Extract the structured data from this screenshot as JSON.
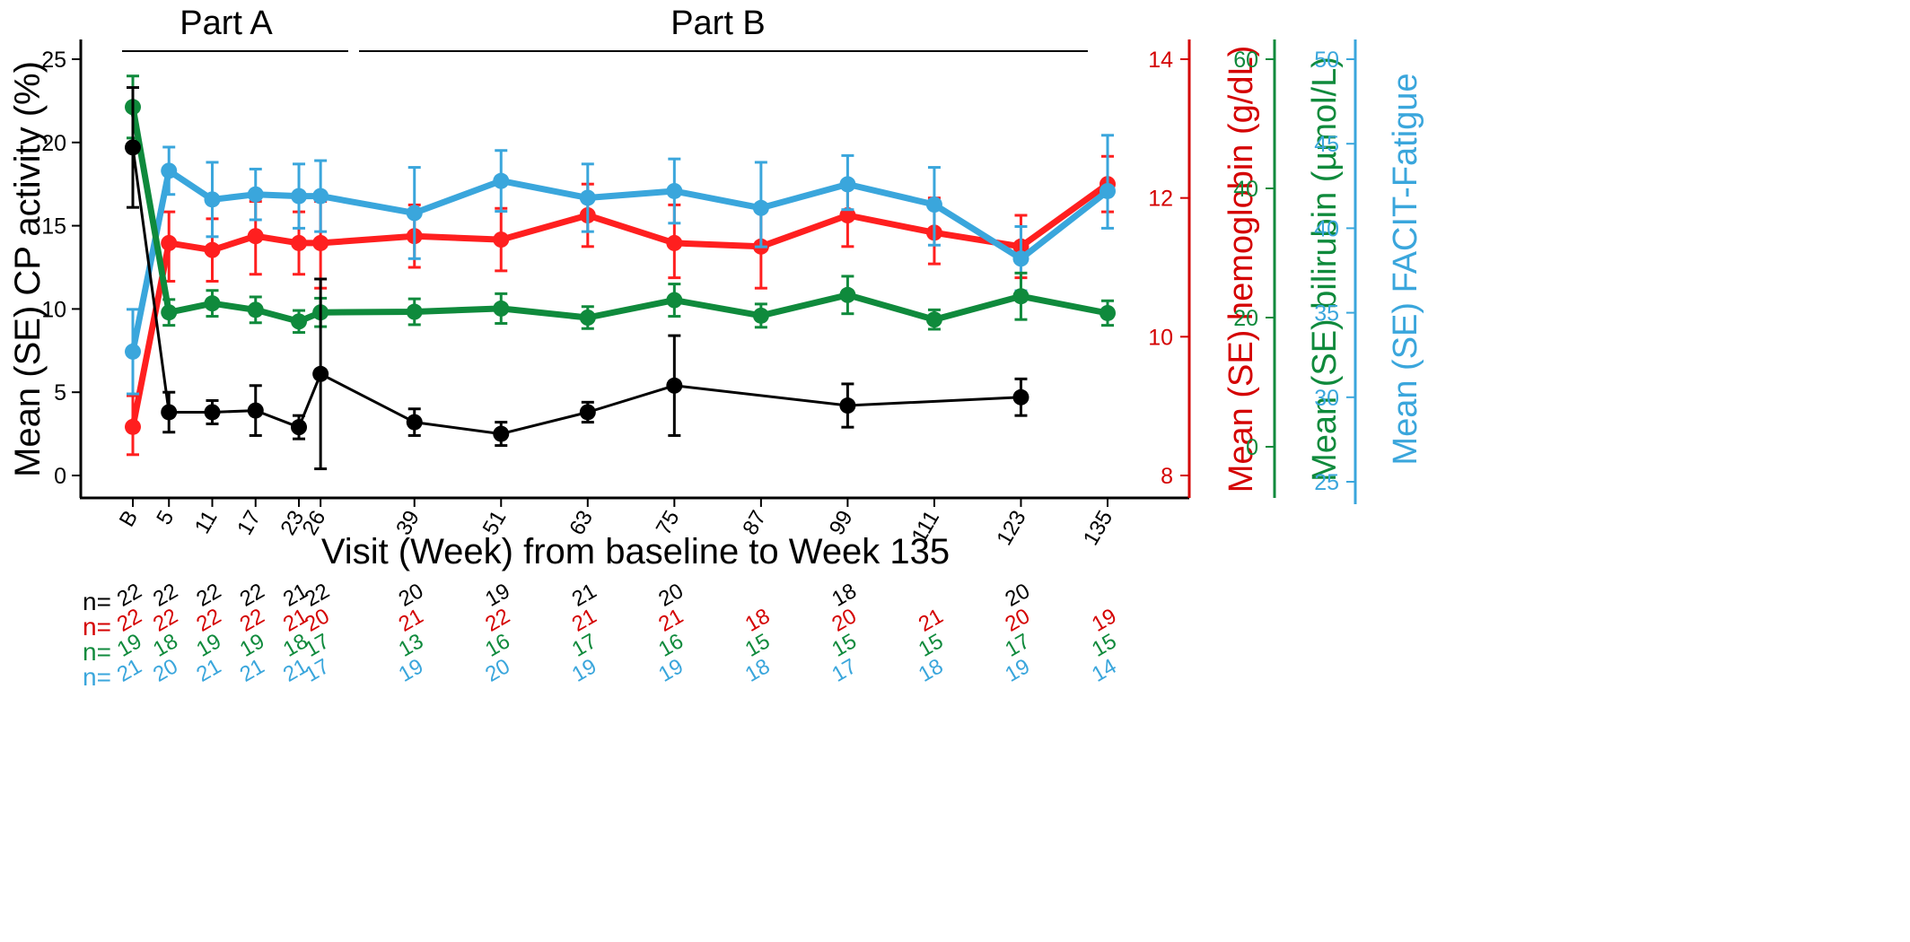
{
  "chart_data": {
    "type": "line",
    "title": "",
    "xlabel": "Visit (Week) from baseline to Week 135",
    "x_categories": [
      "B",
      "5",
      "11",
      "17",
      "23",
      "26",
      "39",
      "51",
      "63",
      "75",
      "87",
      "99",
      "111",
      "123",
      "135"
    ],
    "x_positions_weeks": [
      0,
      5,
      11,
      17,
      23,
      26,
      39,
      51,
      63,
      75,
      87,
      99,
      111,
      123,
      135
    ],
    "phases": [
      {
        "label": "Part A",
        "from_week": 0,
        "to_week": 26
      },
      {
        "label": "Part B",
        "from_week": 27,
        "to_week": 135
      }
    ],
    "axes": [
      {
        "id": "cp",
        "label": "Mean (SE) CP activity (%)",
        "range": [
          0,
          25
        ],
        "ticks": [
          0,
          5,
          10,
          15,
          20,
          25
        ],
        "color": "#000000",
        "side": "left"
      },
      {
        "id": "hgb",
        "label": "Mean (SE) hemoglobin (g/dL)",
        "range": [
          8,
          14
        ],
        "ticks": [
          8,
          10,
          12,
          14
        ],
        "color": "#d40000",
        "side": "right"
      },
      {
        "id": "bili",
        "label": "Mean (SE) bilirubin (µmol/L)",
        "range": [
          -10,
          60
        ],
        "ticks": [
          0,
          20,
          40,
          60
        ],
        "color": "#0f8a3c",
        "side": "right"
      },
      {
        "id": "fatigue",
        "label": "Mean (SE) FACIT-Fatigue",
        "range": [
          25,
          50
        ],
        "ticks": [
          25,
          30,
          35,
          40,
          45,
          50
        ],
        "color": "#3aa6dc",
        "side": "right"
      }
    ],
    "series": [
      {
        "axis": "cp",
        "color": "#000000",
        "points": [
          {
            "week": 0,
            "y": 19.7,
            "lo": 16.1,
            "hi": 23.3
          },
          {
            "week": 5,
            "y": 3.8,
            "lo": 2.6,
            "hi": 5.0
          },
          {
            "week": 11,
            "y": 3.8,
            "lo": 3.1,
            "hi": 4.5
          },
          {
            "week": 17,
            "y": 3.9,
            "lo": 2.4,
            "hi": 5.4
          },
          {
            "week": 23,
            "y": 2.9,
            "lo": 2.2,
            "hi": 3.6
          },
          {
            "week": 26,
            "y": 6.1,
            "lo": 0.4,
            "hi": 11.8
          },
          {
            "week": 39,
            "y": 3.2,
            "lo": 2.4,
            "hi": 4.0
          },
          {
            "week": 51,
            "y": 2.5,
            "lo": 1.8,
            "hi": 3.2
          },
          {
            "week": 63,
            "y": 3.8,
            "lo": 3.2,
            "hi": 4.4
          },
          {
            "week": 75,
            "y": 5.4,
            "lo": 2.4,
            "hi": 8.4
          },
          {
            "week": 99,
            "y": 4.2,
            "lo": 2.9,
            "hi": 5.5
          },
          {
            "week": 123,
            "y": 4.7,
            "lo": 3.6,
            "hi": 5.8
          }
        ]
      },
      {
        "axis": "hgb",
        "color": "#ff1f1f",
        "points": [
          {
            "week": 0,
            "y": 8.7,
            "lo": 8.3,
            "hi": 9.15
          },
          {
            "week": 5,
            "y": 11.35,
            "lo": 10.8,
            "hi": 11.8
          },
          {
            "week": 11,
            "y": 11.25,
            "lo": 10.8,
            "hi": 11.7
          },
          {
            "week": 17,
            "y": 11.45,
            "lo": 10.9,
            "hi": 11.95
          },
          {
            "week": 23,
            "y": 11.35,
            "lo": 10.9,
            "hi": 11.8
          },
          {
            "week": 26,
            "y": 11.35,
            "lo": 10.7,
            "hi": 11.95
          },
          {
            "week": 39,
            "y": 11.45,
            "lo": 11.0,
            "hi": 11.9
          },
          {
            "week": 51,
            "y": 11.4,
            "lo": 10.95,
            "hi": 11.85
          },
          {
            "week": 63,
            "y": 11.75,
            "lo": 11.3,
            "hi": 12.2
          },
          {
            "week": 75,
            "y": 11.35,
            "lo": 10.85,
            "hi": 11.9
          },
          {
            "week": 87,
            "y": 11.3,
            "lo": 10.7,
            "hi": 11.9
          },
          {
            "week": 99,
            "y": 11.75,
            "lo": 11.3,
            "hi": 12.2
          },
          {
            "week": 111,
            "y": 11.5,
            "lo": 11.05,
            "hi": 12.0
          },
          {
            "week": 123,
            "y": 11.3,
            "lo": 10.85,
            "hi": 11.75
          },
          {
            "week": 135,
            "y": 12.2,
            "lo": 11.8,
            "hi": 12.6
          }
        ]
      },
      {
        "axis": "bili",
        "color": "#0f8a3c",
        "points": [
          {
            "week": 0,
            "y": 52.6,
            "lo": 47.8,
            "hi": 57.4
          },
          {
            "week": 5,
            "y": 20.8,
            "lo": 18.8,
            "hi": 22.8
          },
          {
            "week": 11,
            "y": 22.2,
            "lo": 20.2,
            "hi": 24.2
          },
          {
            "week": 17,
            "y": 21.2,
            "lo": 19.2,
            "hi": 23.2
          },
          {
            "week": 23,
            "y": 19.4,
            "lo": 17.7,
            "hi": 21.1
          },
          {
            "week": 26,
            "y": 20.8,
            "lo": 18.6,
            "hi": 23.0
          },
          {
            "week": 39,
            "y": 20.9,
            "lo": 18.9,
            "hi": 22.9
          },
          {
            "week": 51,
            "y": 21.4,
            "lo": 19.1,
            "hi": 23.7
          },
          {
            "week": 63,
            "y": 20.0,
            "lo": 18.3,
            "hi": 21.7
          },
          {
            "week": 75,
            "y": 22.7,
            "lo": 20.2,
            "hi": 25.2
          },
          {
            "week": 87,
            "y": 20.3,
            "lo": 18.5,
            "hi": 22.1
          },
          {
            "week": 99,
            "y": 23.5,
            "lo": 20.6,
            "hi": 26.4
          },
          {
            "week": 111,
            "y": 19.7,
            "lo": 18.2,
            "hi": 21.2
          },
          {
            "week": 123,
            "y": 23.3,
            "lo": 19.7,
            "hi": 26.9
          },
          {
            "week": 135,
            "y": 20.7,
            "lo": 18.8,
            "hi": 22.6
          }
        ]
      },
      {
        "axis": "fatigue",
        "color": "#3aa6dc",
        "points": [
          {
            "week": 0,
            "y": 32.7,
            "lo": 30.2,
            "hi": 35.2
          },
          {
            "week": 5,
            "y": 43.4,
            "lo": 42.0,
            "hi": 44.8
          },
          {
            "week": 11,
            "y": 41.7,
            "lo": 39.5,
            "hi": 43.9
          },
          {
            "week": 17,
            "y": 42.0,
            "lo": 40.5,
            "hi": 43.5
          },
          {
            "week": 23,
            "y": 41.9,
            "lo": 40.0,
            "hi": 43.8
          },
          {
            "week": 26,
            "y": 41.9,
            "lo": 39.8,
            "hi": 44.0
          },
          {
            "week": 39,
            "y": 40.9,
            "lo": 38.2,
            "hi": 43.6
          },
          {
            "week": 51,
            "y": 42.8,
            "lo": 41.0,
            "hi": 44.6
          },
          {
            "week": 63,
            "y": 41.8,
            "lo": 39.8,
            "hi": 43.8
          },
          {
            "week": 75,
            "y": 42.2,
            "lo": 40.3,
            "hi": 44.1
          },
          {
            "week": 87,
            "y": 41.2,
            "lo": 38.9,
            "hi": 43.9
          },
          {
            "week": 99,
            "y": 42.6,
            "lo": 41.1,
            "hi": 44.3
          },
          {
            "week": 111,
            "y": 41.4,
            "lo": 39.0,
            "hi": 43.6
          },
          {
            "week": 123,
            "y": 38.2,
            "lo": 36.3,
            "hi": 40.1
          },
          {
            "week": 135,
            "y": 42.2,
            "lo": 40.0,
            "hi": 45.5
          }
        ]
      }
    ],
    "n_at_risk": [
      {
        "label": "n=",
        "color": "#000000",
        "values": [
          {
            "week": 0,
            "n": "22"
          },
          {
            "week": 5,
            "n": "22"
          },
          {
            "week": 11,
            "n": "22"
          },
          {
            "week": 17,
            "n": "22"
          },
          {
            "week": 23,
            "n": "21"
          },
          {
            "week": 26,
            "n": "22"
          },
          {
            "week": 39,
            "n": "20"
          },
          {
            "week": 51,
            "n": "19"
          },
          {
            "week": 63,
            "n": "21"
          },
          {
            "week": 75,
            "n": "20"
          },
          {
            "week": 99,
            "n": "18"
          },
          {
            "week": 123,
            "n": "20"
          }
        ]
      },
      {
        "label": "n=",
        "color": "#d40000",
        "values": [
          {
            "week": 0,
            "n": "22"
          },
          {
            "week": 5,
            "n": "22"
          },
          {
            "week": 11,
            "n": "22"
          },
          {
            "week": 17,
            "n": "22"
          },
          {
            "week": 23,
            "n": "21"
          },
          {
            "week": 26,
            "n": "20"
          },
          {
            "week": 39,
            "n": "21"
          },
          {
            "week": 51,
            "n": "22"
          },
          {
            "week": 63,
            "n": "21"
          },
          {
            "week": 75,
            "n": "21"
          },
          {
            "week": 87,
            "n": "18"
          },
          {
            "week": 99,
            "n": "20"
          },
          {
            "week": 111,
            "n": "21"
          },
          {
            "week": 123,
            "n": "20"
          },
          {
            "week": 135,
            "n": "19"
          }
        ]
      },
      {
        "label": "n=",
        "color": "#0f8a3c",
        "values": [
          {
            "week": 0,
            "n": "19"
          },
          {
            "week": 5,
            "n": "18"
          },
          {
            "week": 11,
            "n": "19"
          },
          {
            "week": 17,
            "n": "19"
          },
          {
            "week": 23,
            "n": "18"
          },
          {
            "week": 26,
            "n": "17"
          },
          {
            "week": 39,
            "n": "13"
          },
          {
            "week": 51,
            "n": "16"
          },
          {
            "week": 63,
            "n": "17"
          },
          {
            "week": 75,
            "n": "16"
          },
          {
            "week": 87,
            "n": "15"
          },
          {
            "week": 99,
            "n": "15"
          },
          {
            "week": 111,
            "n": "15"
          },
          {
            "week": 123,
            "n": "17"
          },
          {
            "week": 135,
            "n": "15"
          }
        ]
      },
      {
        "label": "n=",
        "color": "#3aa6dc",
        "values": [
          {
            "week": 0,
            "n": "21"
          },
          {
            "week": 5,
            "n": "20"
          },
          {
            "week": 11,
            "n": "21"
          },
          {
            "week": 17,
            "n": "21"
          },
          {
            "week": 23,
            "n": "21"
          },
          {
            "week": 26,
            "n": "17"
          },
          {
            "week": 39,
            "n": "19"
          },
          {
            "week": 51,
            "n": "20"
          },
          {
            "week": 63,
            "n": "19"
          },
          {
            "week": 75,
            "n": "19"
          },
          {
            "week": 87,
            "n": "18"
          },
          {
            "week": 99,
            "n": "17"
          },
          {
            "week": 111,
            "n": "18"
          },
          {
            "week": 123,
            "n": "19"
          },
          {
            "week": 135,
            "n": "14"
          }
        ]
      }
    ],
    "grid": false,
    "legend": "none"
  }
}
